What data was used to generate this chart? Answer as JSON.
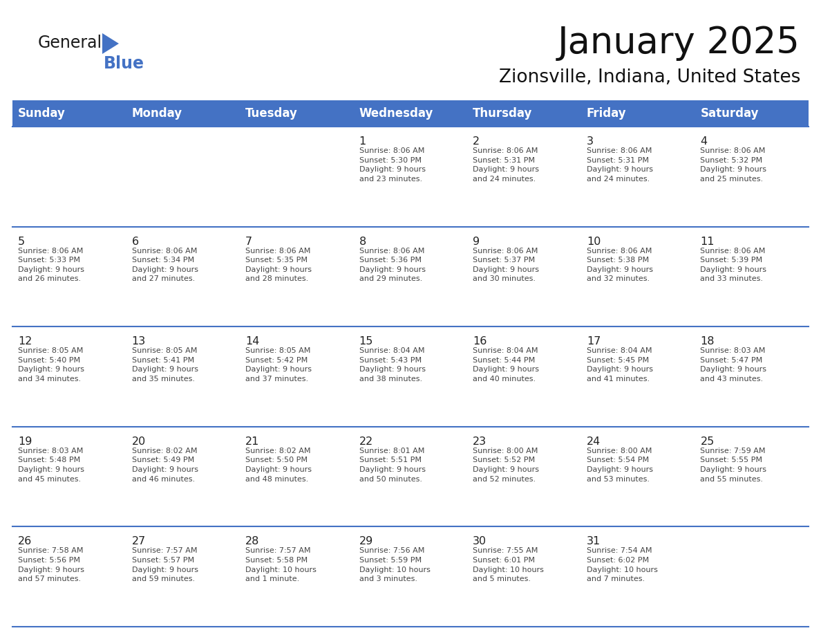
{
  "title": "January 2025",
  "subtitle": "Zionsville, Indiana, United States",
  "header_bg": "#4472C4",
  "header_text_color": "#FFFFFF",
  "day_headers": [
    "Sunday",
    "Monday",
    "Tuesday",
    "Wednesday",
    "Thursday",
    "Friday",
    "Saturday"
  ],
  "date_text_color": "#222222",
  "info_text_color": "#444444",
  "line_color": "#4472C4",
  "logo_general_color": "#1a1a1a",
  "logo_blue_color": "#4472C4",
  "logo_triangle_color": "#4472C4",
  "weeks": [
    [
      {
        "day": "",
        "info": ""
      },
      {
        "day": "",
        "info": ""
      },
      {
        "day": "",
        "info": ""
      },
      {
        "day": "1",
        "info": "Sunrise: 8:06 AM\nSunset: 5:30 PM\nDaylight: 9 hours\nand 23 minutes."
      },
      {
        "day": "2",
        "info": "Sunrise: 8:06 AM\nSunset: 5:31 PM\nDaylight: 9 hours\nand 24 minutes."
      },
      {
        "day": "3",
        "info": "Sunrise: 8:06 AM\nSunset: 5:31 PM\nDaylight: 9 hours\nand 24 minutes."
      },
      {
        "day": "4",
        "info": "Sunrise: 8:06 AM\nSunset: 5:32 PM\nDaylight: 9 hours\nand 25 minutes."
      }
    ],
    [
      {
        "day": "5",
        "info": "Sunrise: 8:06 AM\nSunset: 5:33 PM\nDaylight: 9 hours\nand 26 minutes."
      },
      {
        "day": "6",
        "info": "Sunrise: 8:06 AM\nSunset: 5:34 PM\nDaylight: 9 hours\nand 27 minutes."
      },
      {
        "day": "7",
        "info": "Sunrise: 8:06 AM\nSunset: 5:35 PM\nDaylight: 9 hours\nand 28 minutes."
      },
      {
        "day": "8",
        "info": "Sunrise: 8:06 AM\nSunset: 5:36 PM\nDaylight: 9 hours\nand 29 minutes."
      },
      {
        "day": "9",
        "info": "Sunrise: 8:06 AM\nSunset: 5:37 PM\nDaylight: 9 hours\nand 30 minutes."
      },
      {
        "day": "10",
        "info": "Sunrise: 8:06 AM\nSunset: 5:38 PM\nDaylight: 9 hours\nand 32 minutes."
      },
      {
        "day": "11",
        "info": "Sunrise: 8:06 AM\nSunset: 5:39 PM\nDaylight: 9 hours\nand 33 minutes."
      }
    ],
    [
      {
        "day": "12",
        "info": "Sunrise: 8:05 AM\nSunset: 5:40 PM\nDaylight: 9 hours\nand 34 minutes."
      },
      {
        "day": "13",
        "info": "Sunrise: 8:05 AM\nSunset: 5:41 PM\nDaylight: 9 hours\nand 35 minutes."
      },
      {
        "day": "14",
        "info": "Sunrise: 8:05 AM\nSunset: 5:42 PM\nDaylight: 9 hours\nand 37 minutes."
      },
      {
        "day": "15",
        "info": "Sunrise: 8:04 AM\nSunset: 5:43 PM\nDaylight: 9 hours\nand 38 minutes."
      },
      {
        "day": "16",
        "info": "Sunrise: 8:04 AM\nSunset: 5:44 PM\nDaylight: 9 hours\nand 40 minutes."
      },
      {
        "day": "17",
        "info": "Sunrise: 8:04 AM\nSunset: 5:45 PM\nDaylight: 9 hours\nand 41 minutes."
      },
      {
        "day": "18",
        "info": "Sunrise: 8:03 AM\nSunset: 5:47 PM\nDaylight: 9 hours\nand 43 minutes."
      }
    ],
    [
      {
        "day": "19",
        "info": "Sunrise: 8:03 AM\nSunset: 5:48 PM\nDaylight: 9 hours\nand 45 minutes."
      },
      {
        "day": "20",
        "info": "Sunrise: 8:02 AM\nSunset: 5:49 PM\nDaylight: 9 hours\nand 46 minutes."
      },
      {
        "day": "21",
        "info": "Sunrise: 8:02 AM\nSunset: 5:50 PM\nDaylight: 9 hours\nand 48 minutes."
      },
      {
        "day": "22",
        "info": "Sunrise: 8:01 AM\nSunset: 5:51 PM\nDaylight: 9 hours\nand 50 minutes."
      },
      {
        "day": "23",
        "info": "Sunrise: 8:00 AM\nSunset: 5:52 PM\nDaylight: 9 hours\nand 52 minutes."
      },
      {
        "day": "24",
        "info": "Sunrise: 8:00 AM\nSunset: 5:54 PM\nDaylight: 9 hours\nand 53 minutes."
      },
      {
        "day": "25",
        "info": "Sunrise: 7:59 AM\nSunset: 5:55 PM\nDaylight: 9 hours\nand 55 minutes."
      }
    ],
    [
      {
        "day": "26",
        "info": "Sunrise: 7:58 AM\nSunset: 5:56 PM\nDaylight: 9 hours\nand 57 minutes."
      },
      {
        "day": "27",
        "info": "Sunrise: 7:57 AM\nSunset: 5:57 PM\nDaylight: 9 hours\nand 59 minutes."
      },
      {
        "day": "28",
        "info": "Sunrise: 7:57 AM\nSunset: 5:58 PM\nDaylight: 10 hours\nand 1 minute."
      },
      {
        "day": "29",
        "info": "Sunrise: 7:56 AM\nSunset: 5:59 PM\nDaylight: 10 hours\nand 3 minutes."
      },
      {
        "day": "30",
        "info": "Sunrise: 7:55 AM\nSunset: 6:01 PM\nDaylight: 10 hours\nand 5 minutes."
      },
      {
        "day": "31",
        "info": "Sunrise: 7:54 AM\nSunset: 6:02 PM\nDaylight: 10 hours\nand 7 minutes."
      },
      {
        "day": "",
        "info": ""
      }
    ]
  ]
}
